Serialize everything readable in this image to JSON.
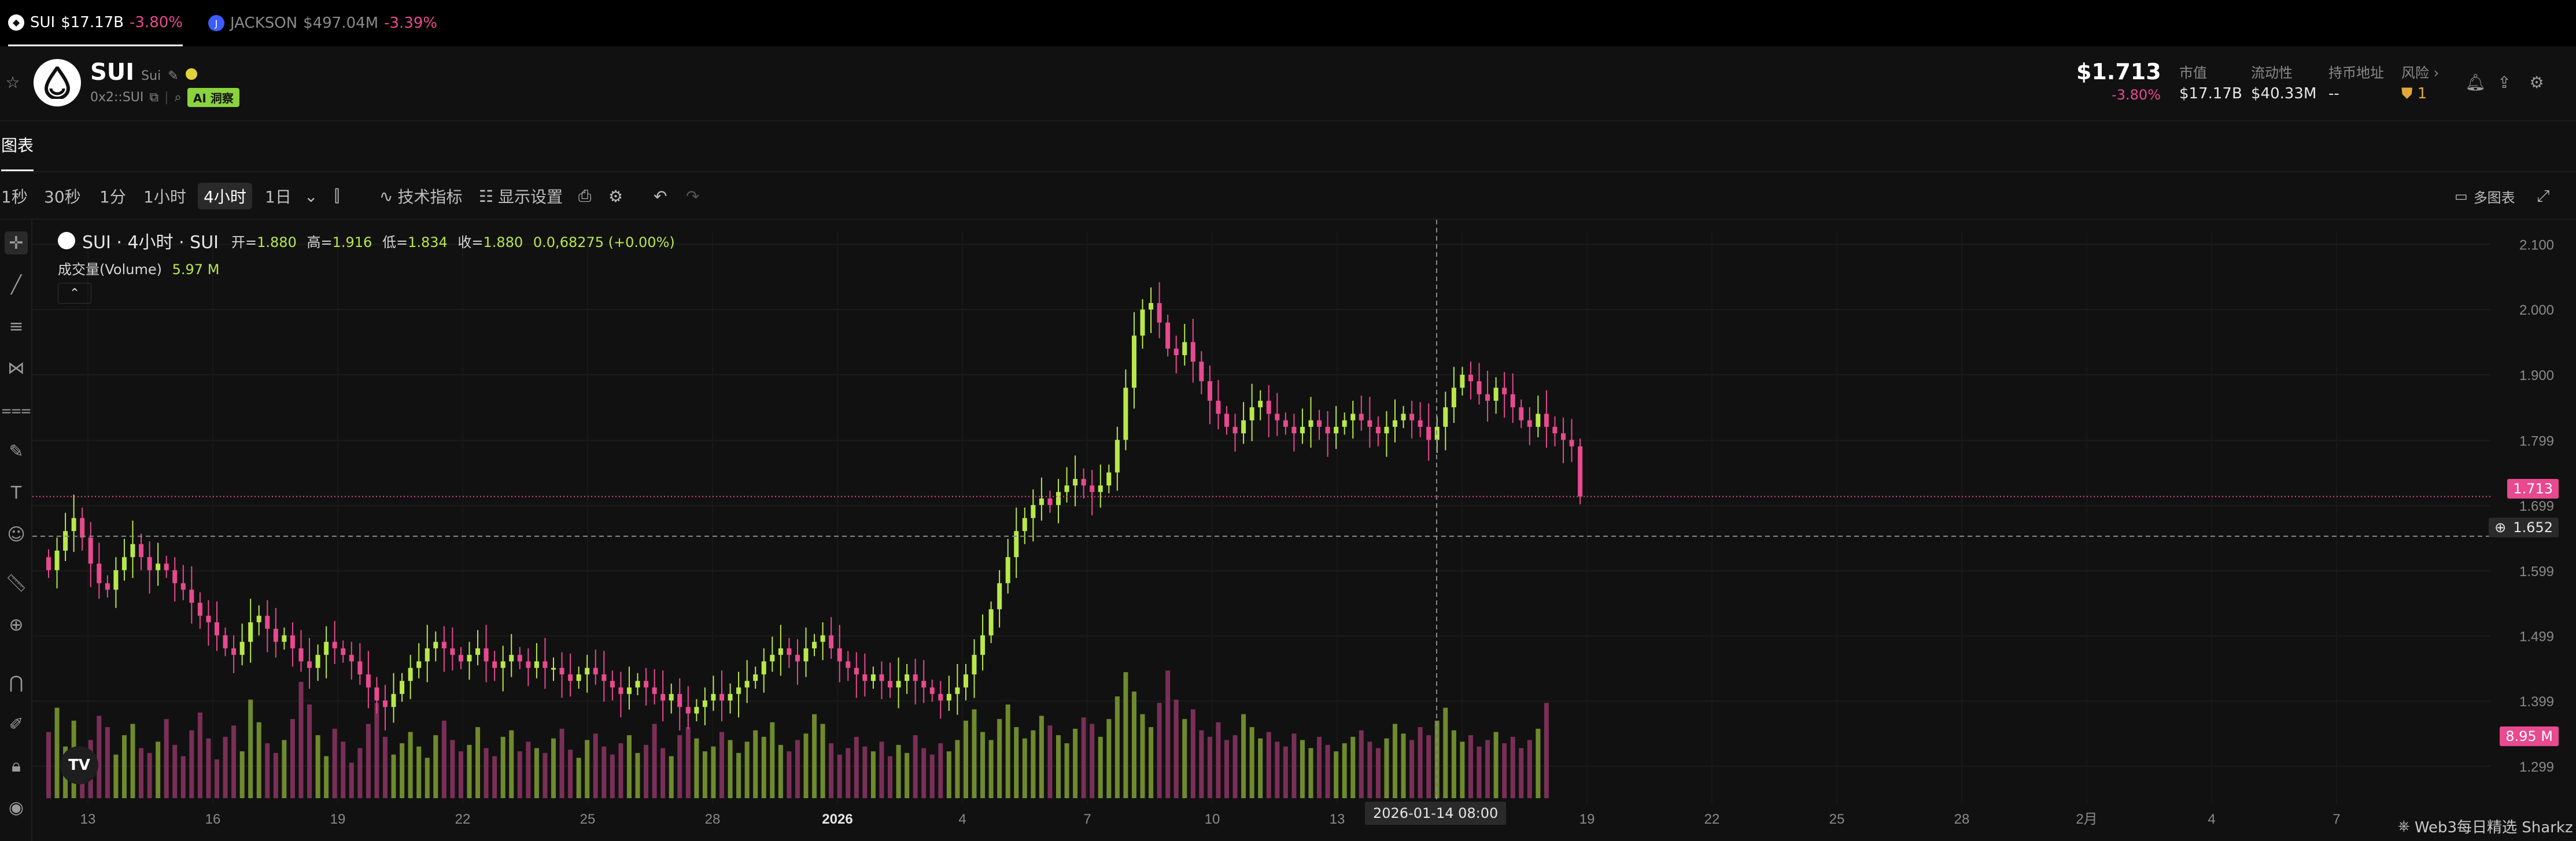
{
  "ticker_strip": [
    {
      "symbol": "SUI",
      "cap": "$17.17B",
      "change": "-3.80%",
      "active": true
    },
    {
      "symbol": "JACKSON",
      "cap": "$497.04M",
      "change": "-3.39%",
      "active": false
    }
  ],
  "token": {
    "symbol": "SUI",
    "name": "Sui",
    "address": "0x2::SUI",
    "ai_badge": "AI 洞察",
    "price": "$1.713",
    "change": "-3.80%",
    "stats": [
      {
        "label": "市值",
        "value": "$17.17B"
      },
      {
        "label": "流动性",
        "value": "$40.33M"
      },
      {
        "label": "持币地址",
        "value": "--"
      },
      {
        "label": "风险",
        "value": "1"
      }
    ]
  },
  "tabs": [
    {
      "label": "图表"
    }
  ],
  "toolbar": {
    "intervals": [
      "1秒",
      "30秒",
      "1分",
      "1小时",
      "4小时",
      "1日"
    ],
    "selected_interval": "4小时",
    "indicators_label": "技术指标",
    "display_label": "显示设置",
    "multi_chart_label": "多图表"
  },
  "legend": {
    "title": "SUI · 4小时 · SUI",
    "open_label": "开=",
    "open": "1.880",
    "high_label": "高=",
    "high": "1.916",
    "low_label": "低=",
    "low": "1.834",
    "close_label": "收=",
    "close": "1.880",
    "delta": "0.0,68275 (+0.00%)",
    "volume_label": "成交量(Volume)",
    "volume": "5.97 M"
  },
  "price_axis": [
    "2.100",
    "2.000",
    "1.900",
    "1.799",
    "1.699",
    "1.599",
    "1.499",
    "1.399",
    "1.299"
  ],
  "price_tags": {
    "last": "1.713",
    "crosshair": "1.652",
    "volume": "8.95 M"
  },
  "time_axis": [
    "13",
    "16",
    "19",
    "22",
    "25",
    "28",
    "2026",
    "4",
    "7",
    "10",
    "13",
    "16",
    "19",
    "22",
    "25",
    "28",
    "2月",
    "4",
    "7"
  ],
  "crosshair_time": "2026-01-14  08:00",
  "watermark": "Web3每日精选 Sharkz",
  "tv_logo": "TV",
  "colors": {
    "up": "#b8e84a",
    "down": "#e8498f",
    "accent": "#e8498f",
    "ai_badge": "#8bd33e"
  },
  "chart_data": {
    "type": "candlestick",
    "interval": "4小时",
    "series": [
      {
        "name": "SUI",
        "values": [
          1.6,
          1.63,
          1.66,
          1.68,
          1.65,
          1.61,
          1.58,
          1.57,
          1.6,
          1.62,
          1.64,
          1.62,
          1.6,
          1.61,
          1.6,
          1.58,
          1.57,
          1.55,
          1.53,
          1.52,
          1.5,
          1.48,
          1.47,
          1.49,
          1.52,
          1.53,
          1.51,
          1.49,
          1.5,
          1.48,
          1.46,
          1.45,
          1.47,
          1.49,
          1.48,
          1.47,
          1.46,
          1.44,
          1.42,
          1.4,
          1.39,
          1.41,
          1.43,
          1.45,
          1.46,
          1.48,
          1.49,
          1.48,
          1.47,
          1.46,
          1.47,
          1.48,
          1.46,
          1.45,
          1.46,
          1.47,
          1.46,
          1.45,
          1.46,
          1.45,
          1.45,
          1.44,
          1.43,
          1.44,
          1.45,
          1.44,
          1.43,
          1.42,
          1.41,
          1.42,
          1.43,
          1.42,
          1.41,
          1.4,
          1.41,
          1.39,
          1.38,
          1.39,
          1.4,
          1.41,
          1.4,
          1.41,
          1.42,
          1.43,
          1.44,
          1.46,
          1.47,
          1.48,
          1.47,
          1.46,
          1.48,
          1.49,
          1.5,
          1.48,
          1.46,
          1.45,
          1.44,
          1.43,
          1.44,
          1.43,
          1.42,
          1.43,
          1.44,
          1.43,
          1.42,
          1.41,
          1.4,
          1.41,
          1.42,
          1.44,
          1.47,
          1.5,
          1.54,
          1.58,
          1.62,
          1.66,
          1.68,
          1.7,
          1.71,
          1.7,
          1.72,
          1.73,
          1.74,
          1.73,
          1.72,
          1.73,
          1.75,
          1.8,
          1.88,
          1.96,
          2.0,
          2.01,
          1.98,
          1.94,
          1.93,
          1.95,
          1.92,
          1.89,
          1.86,
          1.84,
          1.82,
          1.81,
          1.83,
          1.85,
          1.86,
          1.84,
          1.83,
          1.82,
          1.81,
          1.82,
          1.83,
          1.82,
          1.81,
          1.82,
          1.83,
          1.84,
          1.83,
          1.82,
          1.81,
          1.82,
          1.83,
          1.84,
          1.83,
          1.82,
          1.8,
          1.82,
          1.85,
          1.88,
          1.9,
          1.89,
          1.87,
          1.86,
          1.88,
          1.87,
          1.85,
          1.83,
          1.82,
          1.84,
          1.82,
          1.81,
          1.8,
          1.79,
          1.713
        ]
      }
    ],
    "volume_series": [
      {
        "name": "成交量(Volume)",
        "values": [
          4.1,
          5.6,
          3.2,
          4.8,
          2.9,
          3.6,
          5.1,
          4.4,
          2.7,
          3.9,
          4.6,
          3.1,
          2.8,
          3.5,
          4.9,
          3.3,
          2.6,
          4.2,
          5.3,
          3.7,
          2.4,
          3.8,
          4.5,
          2.9,
          6.1,
          4.7,
          3.4,
          2.8,
          3.6,
          4.9,
          7.2,
          5.8,
          3.9,
          2.6,
          4.3,
          3.5,
          2.2,
          3.1,
          4.6,
          5.9,
          3.8,
          2.7,
          3.4,
          4.1,
          3.2,
          2.5,
          3.9,
          4.8,
          3.6,
          2.9,
          3.3,
          4.4,
          3.1,
          2.6,
          3.8,
          4.2,
          2.9,
          3.5,
          3.1,
          2.8,
          3.7,
          4.3,
          3.0,
          2.5,
          3.6,
          4.0,
          3.2,
          2.7,
          3.4,
          3.9,
          2.8,
          3.3,
          4.6,
          3.1,
          2.6,
          3.9,
          4.4,
          3.7,
          2.9,
          3.2,
          4.1,
          3.6,
          2.8,
          3.5,
          4.2,
          3.8,
          4.7,
          3.3,
          2.9,
          3.6,
          4.0,
          5.2,
          4.6,
          3.4,
          2.7,
          3.1,
          3.8,
          3.2,
          2.9,
          3.5,
          2.6,
          3.3,
          2.8,
          3.9,
          3.1,
          2.7,
          3.4,
          2.9,
          3.6,
          4.8,
          5.5,
          4.1,
          3.6,
          4.9,
          5.8,
          4.4,
          3.7,
          4.2,
          5.1,
          4.5,
          3.9,
          3.4,
          4.3,
          5.0,
          4.6,
          3.8,
          4.9,
          6.3,
          7.8,
          6.6,
          5.2,
          4.4,
          5.9,
          7.9,
          6.1,
          4.9,
          5.5,
          4.2,
          3.8,
          4.7,
          3.6,
          3.9,
          5.2,
          4.4,
          3.7,
          4.1,
          3.5,
          3.2,
          4.0,
          3.6,
          3.1,
          3.8,
          3.3,
          2.9,
          3.4,
          3.8,
          4.2,
          3.5,
          3.1,
          3.7,
          4.6,
          4.0,
          3.6,
          4.4,
          3.9,
          4.8,
          5.6,
          4.2,
          3.5,
          3.9,
          3.2,
          3.6,
          4.1,
          3.4,
          3.8,
          3.1,
          3.6,
          4.3,
          5.9
        ]
      }
    ],
    "ylim": [
      1.25,
      2.12
    ],
    "price_axis_ticks": [
      2.1,
      2.0,
      1.9,
      1.799,
      1.699,
      1.599,
      1.499,
      1.399,
      1.299
    ],
    "last_price": 1.713,
    "crosshair_price": 1.652,
    "grid": true
  }
}
